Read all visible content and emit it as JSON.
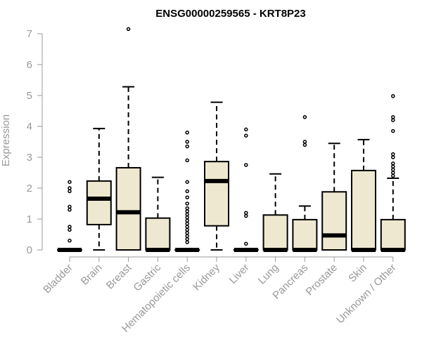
{
  "chart_data": {
    "type": "boxplot",
    "title": "ENSG00000259565 - KRT8P23",
    "ylabel": "Expression",
    "xlabel": "",
    "ylim": [
      0,
      7
    ],
    "yticks": [
      0,
      1,
      2,
      3,
      4,
      5,
      6,
      7
    ],
    "box_color": "#EEE8D1",
    "line_color": "#000000",
    "axis_color": "#999999",
    "categories": [
      "Bladder",
      "Brain",
      "Breast",
      "Gastric",
      "Hematopoietic cells",
      "Kidney",
      "Liver",
      "Lung",
      "Pancreas",
      "Prostate",
      "Skin",
      "Unknown / Other"
    ],
    "boxes": [
      {
        "min": 0,
        "q1": 0,
        "median": 0,
        "q3": 0,
        "max": 0,
        "outliers": [
          0.3,
          0.65,
          0.75,
          1.3,
          1.4,
          1.9,
          2.0,
          2.2
        ]
      },
      {
        "min": 0,
        "q1": 0.82,
        "median": 1.66,
        "q3": 2.23,
        "max": 3.93,
        "outliers": []
      },
      {
        "min": 0,
        "q1": 0,
        "median": 1.22,
        "q3": 2.66,
        "max": 5.28,
        "outliers": [
          7.15
        ]
      },
      {
        "min": 0,
        "q1": 0,
        "median": 0,
        "q3": 1.03,
        "max": 2.35,
        "outliers": []
      },
      {
        "min": 0,
        "q1": 0,
        "median": 0,
        "q3": 0,
        "max": 0,
        "outliers": [
          0.25,
          0.35,
          0.45,
          0.55,
          0.65,
          0.75,
          0.85,
          0.95,
          1.05,
          1.15,
          1.25,
          1.35,
          1.5,
          1.7,
          1.9,
          2.2,
          2.9,
          3.35,
          3.5,
          3.8
        ]
      },
      {
        "min": 0,
        "q1": 0.78,
        "median": 2.23,
        "q3": 2.86,
        "max": 4.78,
        "outliers": []
      },
      {
        "min": 0,
        "q1": 0,
        "median": 0,
        "q3": 0,
        "max": 0,
        "outliers": [
          0.2,
          1.1,
          1.2,
          2.75,
          3.7,
          3.9
        ]
      },
      {
        "min": 0,
        "q1": 0,
        "median": 0,
        "q3": 1.13,
        "max": 2.46,
        "outliers": []
      },
      {
        "min": 0,
        "q1": 0,
        "median": 0,
        "q3": 0.98,
        "max": 1.42,
        "outliers": [
          3.4,
          3.5,
          4.3
        ]
      },
      {
        "min": 0,
        "q1": 0,
        "median": 0.47,
        "q3": 1.88,
        "max": 3.45,
        "outliers": []
      },
      {
        "min": 0,
        "q1": 0,
        "median": 0,
        "q3": 2.57,
        "max": 3.57,
        "outliers": []
      },
      {
        "min": 0,
        "q1": 0,
        "median": 0,
        "q3": 0.98,
        "max": 2.32,
        "outliers": [
          2.4,
          2.5,
          2.6,
          2.7,
          2.8,
          3.0,
          3.1,
          3.85,
          4.2,
          4.3,
          4.98
        ]
      }
    ]
  }
}
